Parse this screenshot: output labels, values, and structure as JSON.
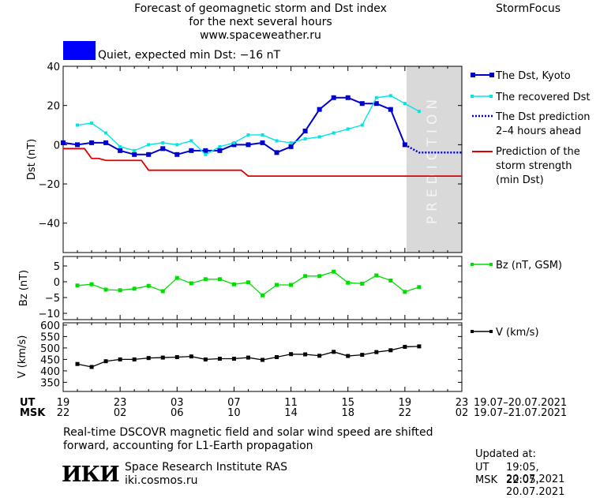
{
  "header": {
    "title_line1": "Forecast of geomagnetic storm and Dst index",
    "title_line2": "for the next several hours",
    "url": "www.spaceweather.ru",
    "brand": "StormFocus"
  },
  "status": {
    "swatch_color": "#0000ff",
    "text": "Quiet, expected min Dst: −16 nT"
  },
  "prediction_label": "PREDICTION",
  "colors": {
    "dst_kyoto": "#0000cc",
    "recovered": "#00e5e5",
    "prediction": "#0000cc",
    "storm_strength": "#e00000",
    "bz": "#00dd00",
    "v": "#000000",
    "prediction_band": "#d9d9d9"
  },
  "legend": {
    "dst_kyoto": "The Dst, Kyoto",
    "recovered": "The recovered Dst",
    "prediction_l1": "The Dst prediction",
    "prediction_l2": "2–4 hours ahead",
    "storm_l1": "Prediction of the",
    "storm_l2": "storm strength",
    "storm_l3": "(min Dst)",
    "bz": "Bz (nT, GSM)",
    "v": "V (km/s)"
  },
  "time_axis": {
    "ut_label": "UT",
    "msk_label": "MSK",
    "ut_ticks": [
      "19",
      "23",
      "03",
      "07",
      "11",
      "15",
      "19",
      "23"
    ],
    "msk_ticks": [
      "22",
      "02",
      "06",
      "10",
      "14",
      "18",
      "22",
      "02"
    ],
    "ut_range": "19.07–20.07.2021",
    "msk_range": "19.07–21.07.2021"
  },
  "footer": {
    "note_l1": "Real-time DSCOVR magnetic field and solar wind speed are shifted",
    "note_l2": "forward, accounting for L1-Earth propagation",
    "logo": "ИКИ",
    "institute": "Space Research Institute RAS",
    "site": "iki.cosmos.ru",
    "updated_label": "Updated at:",
    "updated_ut_label": "UT",
    "updated_ut": "19:05, 20.07.2021",
    "updated_msk_label": "MSK",
    "updated_msk": "22:05, 20.07.2021"
  },
  "chart_data": [
    {
      "type": "line",
      "ylabel": "Dst (nT)",
      "ylim": [
        -55,
        40
      ],
      "yticks": [
        40,
        20,
        0,
        -20,
        -40
      ],
      "xlim": [
        0,
        28
      ],
      "x_unit": "hours since 19 UT, 19.07.2021",
      "prediction_region": [
        24,
        28
      ],
      "series": [
        {
          "name": "The Dst, Kyoto",
          "x": [
            0,
            1,
            2,
            3,
            4,
            5,
            6,
            7,
            8,
            9,
            10,
            11,
            12,
            13,
            14,
            15,
            16,
            17,
            18,
            19,
            20,
            21,
            22,
            23,
            24
          ],
          "y": [
            1,
            0,
            1,
            1,
            -3,
            -5,
            -5,
            -2,
            -5,
            -3,
            -3,
            -3,
            0,
            0,
            1,
            -4,
            -1,
            7,
            18,
            24,
            24,
            21,
            21,
            18,
            0
          ]
        },
        {
          "name": "The recovered Dst",
          "x": [
            1,
            2,
            3,
            4,
            5,
            6,
            7,
            8,
            9,
            10,
            11,
            12,
            13,
            14,
            15,
            16,
            17,
            18,
            19,
            20,
            21,
            22,
            23,
            24,
            25
          ],
          "y": [
            10,
            11,
            6,
            -1,
            -3,
            0,
            1,
            0,
            2,
            -5,
            -1,
            1,
            5,
            5,
            2,
            1,
            3,
            4,
            6,
            8,
            10,
            24,
            25,
            21,
            17
          ]
        },
        {
          "name": "The Dst prediction 2–4 hours ahead",
          "x": [
            24,
            25,
            26,
            27,
            28
          ],
          "y": [
            0,
            -4,
            -4,
            -4,
            -4
          ]
        },
        {
          "name": "Prediction of the storm strength (min Dst)",
          "x": [
            0,
            1,
            2,
            3,
            4,
            5,
            6,
            7,
            8,
            9,
            10,
            11,
            12,
            13,
            14,
            15,
            16,
            17,
            18,
            19,
            20,
            21,
            22,
            23,
            24,
            25,
            26,
            27,
            28
          ],
          "y": [
            -2,
            -2,
            -7,
            -8,
            -8,
            -8,
            -13,
            -13,
            -13,
            -13,
            -13,
            -13,
            -13,
            -16,
            -16,
            -16,
            -16,
            -16,
            -16,
            -16,
            -16,
            -16,
            -16,
            -16,
            -16,
            -16,
            -16,
            -16,
            -16
          ],
          "step": true
        }
      ]
    },
    {
      "type": "line",
      "ylabel": "Bz (nT)",
      "ylim": [
        -12,
        8
      ],
      "yticks": [
        5,
        0,
        -5,
        -10
      ],
      "series": [
        {
          "name": "Bz (nT, GSM)",
          "x": [
            1,
            2,
            3,
            4,
            5,
            6,
            7,
            8,
            9,
            10,
            11,
            12,
            13,
            14,
            15,
            16,
            17,
            18,
            19,
            20,
            21,
            22,
            23,
            24,
            25
          ],
          "y": [
            -1.2,
            -0.8,
            -2.5,
            -2.7,
            -2.2,
            -1.3,
            -3,
            1.2,
            -0.5,
            0.8,
            0.8,
            -0.8,
            -0.2,
            -4.3,
            -1,
            -1,
            1.8,
            1.8,
            3.2,
            -0.3,
            -0.6,
            2,
            0.4,
            -3.2,
            -1.7
          ]
        }
      ]
    },
    {
      "type": "line",
      "ylabel": "V (km/s)",
      "ylim": [
        310,
        610
      ],
      "yticks": [
        600,
        550,
        500,
        450,
        400,
        350
      ],
      "series": [
        {
          "name": "V (km/s)",
          "x": [
            1,
            2,
            3,
            4,
            5,
            6,
            7,
            8,
            9,
            10,
            11,
            12,
            13,
            14,
            15,
            16,
            17,
            18,
            19,
            20,
            21,
            22,
            23,
            24,
            25
          ],
          "y": [
            430,
            417,
            442,
            450,
            450,
            456,
            458,
            460,
            463,
            450,
            453,
            453,
            458,
            448,
            460,
            473,
            472,
            466,
            483,
            465,
            470,
            482,
            490,
            505,
            507
          ]
        }
      ]
    }
  ]
}
